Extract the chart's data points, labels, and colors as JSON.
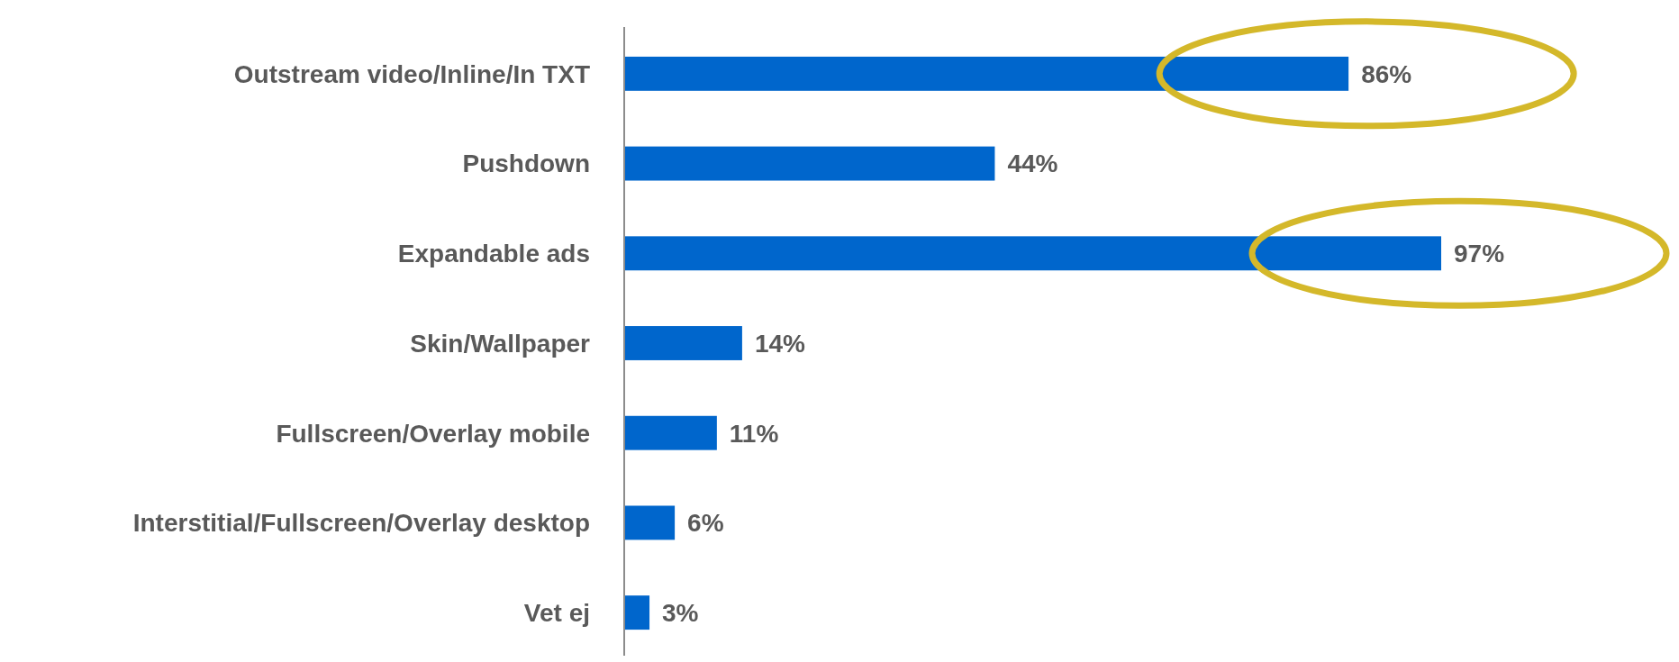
{
  "chart_data": {
    "type": "bar",
    "orientation": "horizontal",
    "categories": [
      "Outstream video/Inline/In TXT",
      "Pushdown",
      "Expandable ads",
      "Skin/Wallpaper",
      "Fullscreen/Overlay mobile",
      "Interstitial/Fullscreen/Overlay desktop",
      "Vet ej"
    ],
    "values": [
      86,
      44,
      97,
      14,
      11,
      6,
      3
    ],
    "value_labels": [
      "86%",
      "44%",
      "97%",
      "14%",
      "11%",
      "6%",
      "3%"
    ],
    "color": "#0066cc"
  }
}
